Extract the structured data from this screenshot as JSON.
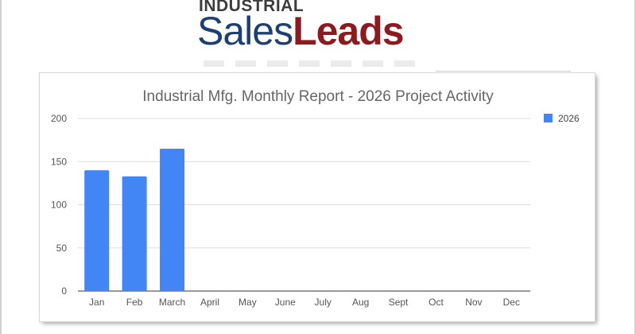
{
  "logo": {
    "line1": "INDUSTRIAL",
    "word_sales": "Sales",
    "word_leads": "Leads"
  },
  "colors": {
    "sales": "#1d3f73",
    "leads": "#8d1a1e",
    "series": "#4285f4"
  },
  "chart_data": {
    "type": "bar",
    "title": "Industrial Mfg. Monthly Report - 2026 Project Activity",
    "xlabel": "",
    "ylabel": "",
    "categories": [
      "Jan",
      "Feb",
      "March",
      "April",
      "May",
      "June",
      "July",
      "Aug",
      "Sept",
      "Oct",
      "Nov",
      "Dec"
    ],
    "series": [
      {
        "name": "2026",
        "color": "#4285f4",
        "values": [
          140,
          133,
          165,
          null,
          null,
          null,
          null,
          null,
          null,
          null,
          null,
          null
        ]
      }
    ],
    "ylim": [
      0,
      200
    ],
    "yticks": [
      0,
      50,
      100,
      150,
      200
    ],
    "grid": true,
    "legend_position": "right"
  }
}
